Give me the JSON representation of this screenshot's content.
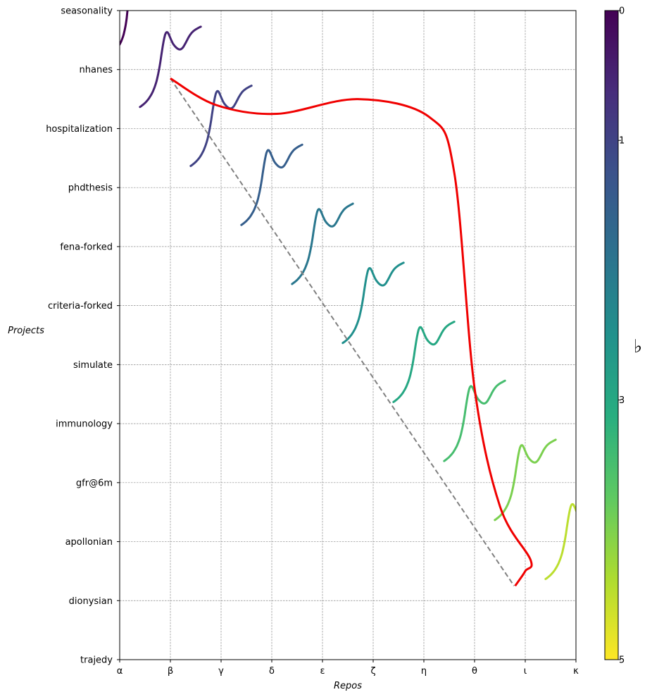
{
  "chart_data": {
    "type": "line",
    "title": "",
    "xlabel": "Repos",
    "ylabel": "Projects",
    "x_categories": [
      "α",
      "β",
      "γ",
      "δ",
      "ε",
      "ζ",
      "η",
      "θ",
      "ι",
      "κ"
    ],
    "y_categories": [
      "seasonality",
      "nhanes",
      "hospitalization",
      "phdthesis",
      "fena-forked",
      "criteria-forked",
      "simulate",
      "immunology",
      "gfr@6m",
      "apollonian",
      "dionysian",
      "trajedy"
    ],
    "xlim": [
      0,
      9
    ],
    "ylim": [
      0,
      11
    ],
    "y_inverted": true,
    "grid": true,
    "colorbar": {
      "label": "♭",
      "ticks": [
        0,
        1,
        3,
        5
      ],
      "range": [
        0,
        5
      ],
      "colormap": "viridis"
    },
    "wave_count": 11,
    "wave_shape": {
      "type": "logistic-plus-bump",
      "amplitude": 1.45,
      "start_x_offset": -0.6,
      "end_x_offset": 0.6,
      "start_y_offset": 0.65
    },
    "series": [
      {
        "style": "red-solid",
        "x": [
          1.0,
          1.9,
          3.1,
          4.7,
          6.1,
          6.6,
          7.0,
          7.5,
          8.1,
          8.0,
          7.8
        ],
        "y": [
          1.15,
          1.6,
          1.75,
          1.5,
          1.8,
          2.75,
          6.4,
          8.4,
          9.3,
          9.5,
          9.75
        ]
      },
      {
        "style": "gray-dashed",
        "x": [
          1.0,
          7.78
        ],
        "y": [
          1.15,
          9.75
        ]
      }
    ]
  },
  "colors": {
    "red_curve": "#f00000",
    "dashed_line": "#808080",
    "grid": "#8c8c8c",
    "axes": "#000000"
  }
}
